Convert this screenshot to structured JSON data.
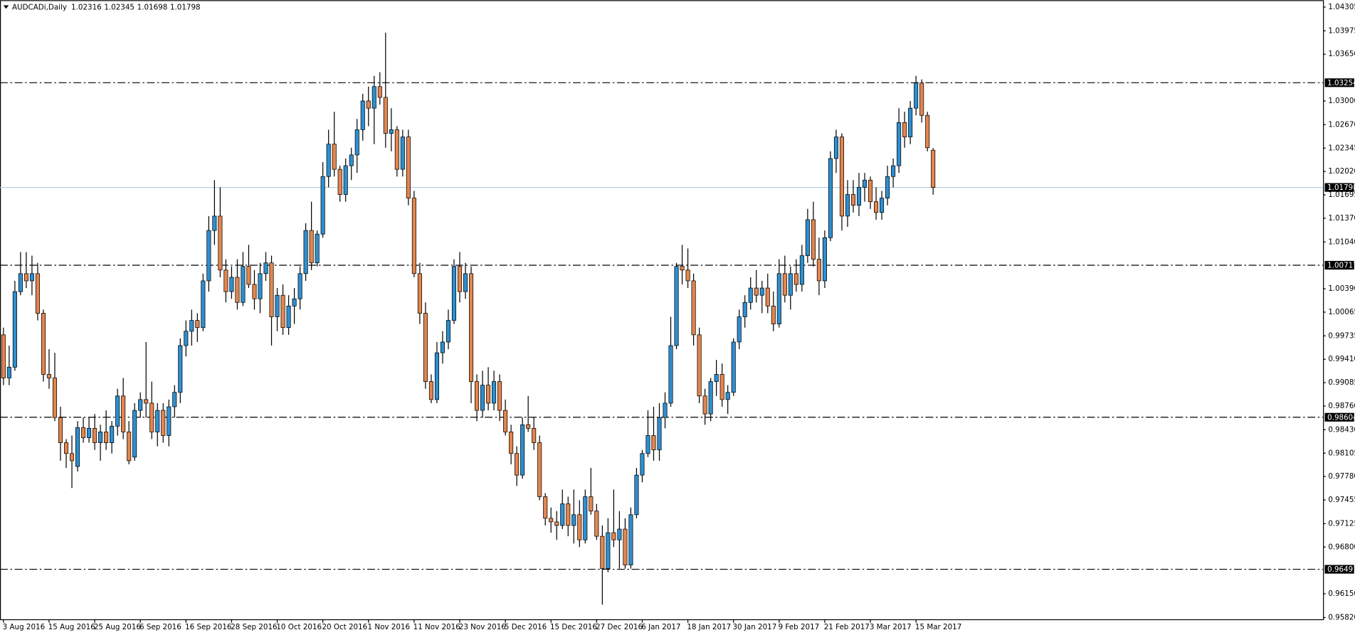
{
  "chart_data": {
    "type": "candlestick",
    "title": "AUDCADi,Daily",
    "categories": [
      "3 Aug 2016",
      null,
      null,
      null,
      null,
      null,
      null,
      null,
      "15 Aug 2016",
      null,
      null,
      null,
      null,
      null,
      null,
      null,
      "25 Aug 2016",
      null,
      null,
      null,
      null,
      null,
      null,
      null,
      "6 Sep 2016",
      null,
      null,
      null,
      null,
      null,
      null,
      null,
      "16 Sep 2016",
      null,
      null,
      null,
      null,
      null,
      null,
      null,
      "28 Sep 2016",
      null,
      null,
      null,
      null,
      null,
      null,
      null,
      "10 Oct 2016",
      null,
      null,
      null,
      null,
      null,
      null,
      null,
      "20 Oct 2016",
      null,
      null,
      null,
      null,
      null,
      null,
      null,
      "1 Nov 2016",
      null,
      null,
      null,
      null,
      null,
      null,
      null,
      "11 Nov 2016",
      null,
      null,
      null,
      null,
      null,
      null,
      null,
      "23 Nov 2016",
      null,
      null,
      null,
      null,
      null,
      null,
      null,
      "5 Dec 2016",
      null,
      null,
      null,
      null,
      null,
      null,
      null,
      "15 Dec 2016",
      null,
      null,
      null,
      null,
      null,
      null,
      null,
      "27 Dec 2016",
      null,
      null,
      null,
      null,
      null,
      null,
      null,
      "6 Jan 2017",
      null,
      null,
      null,
      null,
      null,
      null,
      null,
      "18 Jan 2017",
      null,
      null,
      null,
      null,
      null,
      null,
      null,
      "30 Jan 2017",
      null,
      null,
      null,
      null,
      null,
      null,
      null,
      "9 Feb 2017",
      null,
      null,
      null,
      null,
      null,
      null,
      null,
      "21 Feb 2017",
      null,
      null,
      null,
      null,
      null,
      null,
      null,
      "3 Mar 2017",
      null,
      null,
      null,
      null,
      null,
      null,
      null,
      "15 Mar 2017",
      null,
      null,
      null
    ],
    "open": [
      0.9975,
      0.9915,
      0.993,
      1.0035,
      1.006,
      1.005,
      1.006,
      1.0005,
      0.992,
      0.9915,
      0.986,
      0.9825,
      0.981,
      0.9792,
      0.9846,
      0.9832,
      0.9845,
      0.9825,
      0.984,
      0.9825,
      0.9848,
      0.989,
      0.984,
      0.9805,
      0.987,
      0.9885,
      0.988,
      0.984,
      0.987,
      0.9835,
      0.9875,
      0.9895,
      0.996,
      0.998,
      0.9995,
      0.9985,
      1.005,
      1.012,
      1.014,
      1.0065,
      1.0035,
      1.0055,
      1.002,
      1.007,
      1.0045,
      1.0025,
      1.006,
      1.0075,
      1.0,
      1.003,
      0.9985,
      1.0015,
      1.0025,
      1.006,
      1.012,
      1.0075,
      1.0115,
      1.0195,
      1.024,
      1.0205,
      1.017,
      1.021,
      1.0225,
      1.026,
      1.03,
      1.029,
      1.032,
      1.0305,
      1.0255,
      1.026,
      1.0205,
      1.025,
      1.0165,
      1.006,
      1.0005,
      0.991,
      0.9885,
      0.995,
      0.9965,
      0.9995,
      1.007,
      1.0035,
      1.006,
      0.991,
      0.987,
      0.9905,
      0.988,
      0.991,
      0.987,
      0.984,
      0.981,
      0.978,
      0.985,
      0.9845,
      0.9825,
      0.975,
      0.972,
      0.9715,
      0.971,
      0.974,
      0.971,
      0.9725,
      0.969,
      0.975,
      0.973,
      0.9695,
      0.965,
      0.97,
      0.969,
      0.9705,
      0.9655,
      0.9725,
      0.978,
      0.981,
      0.9835,
      0.9815,
      0.986,
      0.988,
      0.996,
      1.007,
      1.0065,
      1.005,
      0.9975,
      0.989,
      0.9865,
      0.991,
      0.992,
      0.9885,
      0.9895,
      0.9965,
      1.0,
      1.002,
      1.004,
      1.003,
      1.004,
      1.0015,
      0.999,
      1.006,
      1.003,
      1.006,
      1.0045,
      1.0085,
      1.0135,
      1.008,
      1.005,
      1.011,
      1.022,
      1.025,
      1.014,
      1.017,
      1.0155,
      1.018,
      1.019,
      1.016,
      1.0145,
      1.0165,
      1.0195,
      1.021,
      1.027,
      1.025,
      1.029,
      1.0325,
      1.028,
      1.02316
    ],
    "high": [
      0.9985,
      0.996,
      1.005,
      1.009,
      1.009,
      1.0085,
      1.0075,
      1.001,
      0.9955,
      0.995,
      0.9875,
      0.983,
      0.9835,
      0.9855,
      0.986,
      0.986,
      0.9865,
      0.985,
      0.987,
      0.9855,
      0.99,
      0.9915,
      0.9855,
      0.988,
      0.9895,
      0.9965,
      0.991,
      0.988,
      0.988,
      0.9885,
      0.9905,
      0.997,
      0.9995,
      1.001,
      1.0005,
      1.006,
      1.014,
      1.019,
      1.018,
      1.008,
      1.007,
      1.008,
      1.009,
      1.01,
      1.0065,
      1.0075,
      1.009,
      1.0085,
      1.004,
      1.0045,
      1.003,
      1.004,
      1.007,
      1.013,
      1.016,
      1.012,
      1.0215,
      1.026,
      1.0285,
      1.021,
      1.022,
      1.0235,
      1.0275,
      1.031,
      1.032,
      1.0335,
      1.034,
      1.0395,
      1.029,
      1.0265,
      1.026,
      1.026,
      1.0175,
      1.0075,
      1.002,
      0.992,
      0.9965,
      0.998,
      1.001,
      1.008,
      1.009,
      1.0075,
      1.007,
      0.992,
      0.9925,
      0.993,
      0.9925,
      0.992,
      0.9885,
      0.985,
      0.982,
      0.986,
      0.989,
      0.986,
      0.9835,
      0.9755,
      0.9735,
      0.973,
      0.976,
      0.975,
      0.976,
      0.9745,
      0.976,
      0.979,
      0.974,
      0.971,
      0.972,
      0.976,
      0.973,
      0.972,
      0.9735,
      0.979,
      0.9815,
      0.987,
      0.9875,
      0.988,
      0.9895,
      1.0,
      1.0075,
      1.01,
      1.0095,
      1.006,
      0.9985,
      0.99,
      0.9915,
      0.994,
      0.9935,
      0.9905,
      0.997,
      1.001,
      1.003,
      1.0055,
      1.0065,
      1.005,
      1.006,
      1.0035,
      1.008,
      1.0085,
      1.007,
      1.008,
      1.01,
      1.015,
      1.016,
      1.011,
      1.012,
      1.023,
      1.026,
      1.0255,
      1.019,
      1.019,
      1.02,
      1.02,
      1.0195,
      1.018,
      1.0175,
      1.021,
      1.022,
      1.029,
      1.0285,
      1.03,
      1.0335,
      1.033,
      1.0285,
      1.02345
    ],
    "low": [
      0.9905,
      0.9905,
      0.9925,
      1.003,
      1.004,
      1.003,
      0.9995,
      0.991,
      0.99,
      0.9855,
      0.98,
      0.979,
      0.9762,
      0.9785,
      0.9825,
      0.9825,
      0.9815,
      0.98,
      0.9815,
      0.981,
      0.9835,
      0.983,
      0.9795,
      0.98,
      0.986,
      0.986,
      0.983,
      0.982,
      0.9825,
      0.982,
      0.986,
      0.988,
      0.9945,
      0.996,
      0.9965,
      0.998,
      1.0035,
      1.01,
      1.0055,
      1.002,
      1.0025,
      1.001,
      1.0015,
      1.004,
      1.001,
      1.0005,
      1.005,
      0.996,
      0.998,
      0.9975,
      0.9975,
      0.999,
      1.001,
      1.005,
      1.0065,
      1.007,
      1.011,
      1.018,
      1.0195,
      1.016,
      1.016,
      1.019,
      1.02,
      1.0245,
      1.0265,
      1.024,
      1.0295,
      1.0235,
      1.023,
      1.0195,
      1.0195,
      1.0155,
      1.0055,
      0.999,
      0.99,
      0.988,
      0.988,
      0.9935,
      0.9955,
      0.999,
      1.002,
      1.0025,
      0.988,
      0.9855,
      0.986,
      0.987,
      0.987,
      0.9855,
      0.9835,
      0.9795,
      0.9765,
      0.9775,
      0.984,
      0.9815,
      0.9745,
      0.971,
      0.97,
      0.969,
      0.9705,
      0.9695,
      0.9685,
      0.968,
      0.9685,
      0.9725,
      0.969,
      0.96,
      0.9645,
      0.968,
      0.965,
      0.965,
      0.965,
      0.972,
      0.977,
      0.9805,
      0.98,
      0.98,
      0.9845,
      0.9875,
      0.9955,
      1.0045,
      1.004,
      0.996,
      0.988,
      0.985,
      0.9855,
      0.989,
      0.9875,
      0.9865,
      0.989,
      0.9955,
      0.9985,
      1.001,
      1.002,
      1.0005,
      1.0005,
      0.998,
      0.9985,
      1.002,
      1.001,
      1.0035,
      1.0035,
      1.0075,
      1.007,
      1.003,
      1.004,
      1.0105,
      1.02,
      1.012,
      1.0125,
      1.0145,
      1.014,
      1.016,
      1.015,
      1.0135,
      1.0135,
      1.0155,
      1.018,
      1.02,
      1.0235,
      1.024,
      1.028,
      1.027,
      1.023,
      1.01698
    ],
    "close": [
      0.9915,
      0.993,
      1.0035,
      1.006,
      1.005,
      1.006,
      1.0005,
      0.992,
      0.9915,
      0.986,
      0.9825,
      0.981,
      0.98,
      0.9846,
      0.9832,
      0.9845,
      0.9825,
      0.984,
      0.9825,
      0.9848,
      0.989,
      0.984,
      0.98,
      0.987,
      0.9885,
      0.988,
      0.984,
      0.987,
      0.9835,
      0.9875,
      0.9895,
      0.996,
      0.998,
      0.9995,
      0.9985,
      1.005,
      1.012,
      1.014,
      1.0065,
      1.0035,
      1.0055,
      1.002,
      1.007,
      1.0045,
      1.0025,
      1.006,
      1.0075,
      1.0,
      1.003,
      0.9985,
      1.0015,
      1.0025,
      1.006,
      1.012,
      1.0075,
      1.0115,
      1.0195,
      1.024,
      1.0205,
      1.017,
      1.021,
      1.0225,
      1.026,
      1.03,
      1.029,
      1.032,
      1.0305,
      1.0255,
      1.026,
      1.0205,
      1.025,
      1.0165,
      1.006,
      1.0005,
      0.991,
      0.9885,
      0.995,
      0.9965,
      0.9995,
      1.007,
      1.0035,
      1.006,
      0.991,
      0.987,
      0.9905,
      0.988,
      0.991,
      0.987,
      0.984,
      0.981,
      0.978,
      0.985,
      0.9845,
      0.9825,
      0.975,
      0.972,
      0.9715,
      0.971,
      0.974,
      0.971,
      0.9725,
      0.969,
      0.975,
      0.973,
      0.9695,
      0.965,
      0.97,
      0.969,
      0.9705,
      0.9655,
      0.9725,
      0.978,
      0.981,
      0.9835,
      0.9815,
      0.986,
      0.988,
      0.996,
      1.007,
      1.0065,
      1.005,
      0.9975,
      0.989,
      0.9865,
      0.991,
      0.992,
      0.9885,
      0.9895,
      0.9965,
      1.0,
      1.002,
      1.004,
      1.003,
      1.004,
      1.0015,
      0.999,
      1.006,
      1.003,
      1.006,
      1.0045,
      1.0085,
      1.0135,
      1.008,
      1.005,
      1.011,
      1.022,
      1.025,
      1.014,
      1.017,
      1.0155,
      1.018,
      1.019,
      1.016,
      1.0145,
      1.0165,
      1.0195,
      1.021,
      1.027,
      1.025,
      1.029,
      1.0325,
      1.028,
      1.0235,
      1.01798
    ],
    "up_color": "#2e8fd0",
    "down_color": "#e2864f",
    "current_line_color": "#b7cde4",
    "ylim": [
      0.9582,
      1.04305
    ],
    "yticks": [
      1.04305,
      1.03975,
      {
        "value": 1.0365,
        "label": "1.03650"
      },
      {
        "value": 1.03,
        "label": "1.03000"
      },
      {
        "value": 1.0267,
        "label": "1.02670"
      },
      1.02345,
      {
        "value": 1.0202,
        "label": "1.02020"
      },
      1.01695,
      {
        "value": 1.0137,
        "label": "1.01370"
      },
      {
        "value": 1.0104,
        "label": "1.01040"
      },
      {
        "value": 1.0039,
        "label": "1.00390"
      },
      1.00065,
      0.99735,
      {
        "value": 0.9941,
        "label": "0.99410"
      },
      0.99085,
      {
        "value": 0.9876,
        "label": "0.98760"
      },
      {
        "value": 0.9843,
        "label": "0.98430"
      },
      0.98105,
      {
        "value": 0.9778,
        "label": "0.97780"
      },
      0.97455,
      0.97125,
      {
        "value": 0.968,
        "label": "0.96800"
      },
      {
        "value": 0.9615,
        "label": "0.96150"
      },
      {
        "value": 0.9582,
        "label": "0.95820"
      }
    ],
    "levels": [
      1.03254,
      1.00717,
      0.98604,
      0.96491
    ]
  }
}
